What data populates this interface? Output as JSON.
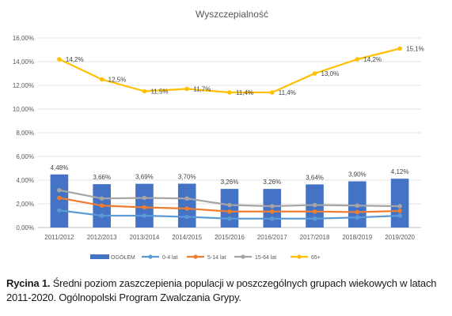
{
  "chart_data": {
    "type": "bar+line",
    "title": "Wyszczepialność",
    "categories": [
      "2011/2012",
      "2012/2013",
      "2013/2014",
      "2014/2015",
      "2015/2016",
      "2016/2017",
      "2017/2018",
      "2018/2019",
      "2019/2020"
    ],
    "ylim": [
      0,
      16
    ],
    "y_ticks": [
      "0,00%",
      "2,00%",
      "4,00%",
      "6,00%",
      "8,00%",
      "10,00%",
      "12,00%",
      "14,00%",
      "16,00%"
    ],
    "y_tick_values": [
      0,
      2,
      4,
      6,
      8,
      10,
      12,
      14,
      16
    ],
    "grid": true,
    "legend_position": "bottom",
    "series": [
      {
        "name": "OGÓŁEM",
        "kind": "bar",
        "color": "#4472c4",
        "values": [
          4.48,
          3.66,
          3.69,
          3.7,
          3.26,
          3.26,
          3.64,
          3.9,
          4.12
        ],
        "labels": [
          "4,48%",
          "3,66%",
          "3,69%",
          "3,70%",
          "3,26%",
          "3,26%",
          "3,64%",
          "3,90%",
          "4,12%"
        ]
      },
      {
        "name": "0-4 lat",
        "kind": "line",
        "color": "#5b9bd5",
        "values": [
          1.45,
          1.0,
          1.0,
          0.9,
          0.75,
          0.75,
          0.75,
          0.85,
          1.0
        ]
      },
      {
        "name": "5-14 lat",
        "kind": "line",
        "color": "#ed7d31",
        "values": [
          2.5,
          1.85,
          1.7,
          1.6,
          1.35,
          1.35,
          1.35,
          1.3,
          1.4
        ]
      },
      {
        "name": "15-64 lat",
        "kind": "line",
        "color": "#a5a5a5",
        "values": [
          3.15,
          2.45,
          2.5,
          2.45,
          1.9,
          1.8,
          1.9,
          1.85,
          1.8
        ]
      },
      {
        "name": "65+",
        "kind": "line",
        "color": "#ffc000",
        "values": [
          14.2,
          12.5,
          11.5,
          11.7,
          11.4,
          11.4,
          13.0,
          14.2,
          15.1
        ],
        "labels": [
          "14,2%",
          "12,5%",
          "11,5%",
          "11,7%",
          "11,4%",
          "11,4%",
          "13,0%",
          "14,2%",
          "15,1%"
        ]
      }
    ]
  },
  "caption": {
    "label": "Rycina 1.",
    "text": " Średni poziom zaszczepienia populacji w poszczególnych grupach wiekowych w latach 2011-2020. Ogólnopolski Program Zwalczania Grypy."
  }
}
